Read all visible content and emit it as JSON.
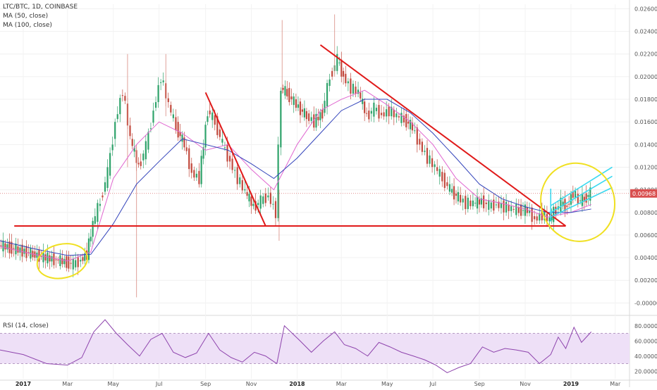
{
  "chart_data": {
    "type": "candlestick",
    "title": "LTC/BTC, 1D, COINBASE",
    "indicators": [
      "MA (50, close)",
      "MA (100, close)"
    ],
    "rsi_label": "RSI (14, close)",
    "last_price": "0.00968",
    "price_ticks": [
      "0.02600",
      "0.02400",
      "0.02200",
      "0.02000",
      "0.01800",
      "0.01600",
      "0.01400",
      "0.01200",
      "0.01000",
      "0.00800",
      "0.00600",
      "0.00400",
      "0.00200",
      "-0.00000"
    ],
    "rsi_ticks": [
      "80.0000",
      "60.0000",
      "40.0000",
      "20.0000"
    ],
    "x_ticks": [
      {
        "label": "2017",
        "bold": true
      },
      {
        "label": "Mar",
        "bold": false
      },
      {
        "label": "May",
        "bold": false
      },
      {
        "label": "Jul",
        "bold": false
      },
      {
        "label": "Sep",
        "bold": false
      },
      {
        "label": "Nov",
        "bold": false
      },
      {
        "label": "2018",
        "bold": true
      },
      {
        "label": "Mar",
        "bold": false
      },
      {
        "label": "May",
        "bold": false
      },
      {
        "label": "Jul",
        "bold": false
      },
      {
        "label": "Sep",
        "bold": false
      },
      {
        "label": "Nov",
        "bold": false
      },
      {
        "label": "2019",
        "bold": true
      },
      {
        "label": "Mar",
        "bold": false
      }
    ],
    "price_series": [
      [
        "2016-12-01",
        0.0051
      ],
      [
        "2016-12-15",
        0.0049
      ],
      [
        "2017-01-01",
        0.0046
      ],
      [
        "2017-01-15",
        0.0043
      ],
      [
        "2017-02-01",
        0.004
      ],
      [
        "2017-02-15",
        0.0038
      ],
      [
        "2017-03-01",
        0.0036
      ],
      [
        "2017-03-10",
        0.0034
      ],
      [
        "2017-03-20",
        0.0038
      ],
      [
        "2017-03-28",
        0.0043
      ],
      [
        "2017-04-05",
        0.007
      ],
      [
        "2017-04-15",
        0.009
      ],
      [
        "2017-04-25",
        0.0115
      ],
      [
        "2017-05-05",
        0.016
      ],
      [
        "2017-05-15",
        0.0188
      ],
      [
        "2017-05-25",
        0.0145
      ],
      [
        "2017-06-05",
        0.012
      ],
      [
        "2017-06-15",
        0.0138
      ],
      [
        "2017-06-25",
        0.017
      ],
      [
        "2017-07-05",
        0.02
      ],
      [
        "2017-07-15",
        0.0175
      ],
      [
        "2017-07-25",
        0.0155
      ],
      [
        "2017-08-05",
        0.014
      ],
      [
        "2017-08-15",
        0.0115
      ],
      [
        "2017-08-25",
        0.011
      ],
      [
        "2017-09-05",
        0.017
      ],
      [
        "2017-09-15",
        0.016
      ],
      [
        "2017-09-25",
        0.014
      ],
      [
        "2017-10-05",
        0.0125
      ],
      [
        "2017-10-15",
        0.011
      ],
      [
        "2017-10-25",
        0.0098
      ],
      [
        "2017-11-05",
        0.0085
      ],
      [
        "2017-11-15",
        0.009
      ],
      [
        "2017-11-25",
        0.0095
      ],
      [
        "2017-12-05",
        0.008
      ],
      [
        "2017-12-12",
        0.019
      ],
      [
        "2017-12-20",
        0.0185
      ],
      [
        "2018-01-01",
        0.0175
      ],
      [
        "2018-01-15",
        0.0165
      ],
      [
        "2018-01-25",
        0.016
      ],
      [
        "2018-02-05",
        0.0168
      ],
      [
        "2018-02-15",
        0.02
      ],
      [
        "2018-02-25",
        0.0215
      ],
      [
        "2018-03-05",
        0.02
      ],
      [
        "2018-03-15",
        0.019
      ],
      [
        "2018-03-25",
        0.0186
      ],
      [
        "2018-04-05",
        0.0165
      ],
      [
        "2018-04-15",
        0.0172
      ],
      [
        "2018-04-25",
        0.0166
      ],
      [
        "2018-05-05",
        0.017
      ],
      [
        "2018-05-15",
        0.0165
      ],
      [
        "2018-05-25",
        0.0162
      ],
      [
        "2018-06-05",
        0.0155
      ],
      [
        "2018-06-15",
        0.014
      ],
      [
        "2018-06-25",
        0.0128
      ],
      [
        "2018-07-05",
        0.012
      ],
      [
        "2018-07-15",
        0.011
      ],
      [
        "2018-07-25",
        0.01
      ],
      [
        "2018-08-05",
        0.0093
      ],
      [
        "2018-08-15",
        0.0088
      ],
      [
        "2018-08-25",
        0.0088
      ],
      [
        "2018-09-05",
        0.009
      ],
      [
        "2018-09-15",
        0.0086
      ],
      [
        "2018-09-25",
        0.0087
      ],
      [
        "2018-10-05",
        0.0085
      ],
      [
        "2018-10-15",
        0.0083
      ],
      [
        "2018-10-25",
        0.0082
      ],
      [
        "2018-11-05",
        0.0082
      ],
      [
        "2018-11-15",
        0.0074
      ],
      [
        "2018-11-25",
        0.0078
      ],
      [
        "2018-12-05",
        0.0073
      ],
      [
        "2018-12-10",
        0.008
      ],
      [
        "2018-12-20",
        0.0088
      ],
      [
        "2018-12-28",
        0.0085
      ],
      [
        "2019-01-05",
        0.0098
      ],
      [
        "2019-01-12",
        0.009
      ],
      [
        "2019-01-20",
        0.0092
      ],
      [
        "2019-01-28",
        0.0097
      ]
    ],
    "ma50": [
      [
        "2016-12-01",
        0.005
      ],
      [
        "2017-01-15",
        0.0043
      ],
      [
        "2017-03-01",
        0.0037
      ],
      [
        "2017-04-01",
        0.0045
      ],
      [
        "2017-05-01",
        0.011
      ],
      [
        "2017-06-01",
        0.014
      ],
      [
        "2017-07-01",
        0.016
      ],
      [
        "2017-08-01",
        0.015
      ],
      [
        "2017-09-01",
        0.0135
      ],
      [
        "2017-10-01",
        0.014
      ],
      [
        "2017-11-01",
        0.0118
      ],
      [
        "2017-12-01",
        0.01
      ],
      [
        "2018-01-01",
        0.014
      ],
      [
        "2018-02-01",
        0.017
      ],
      [
        "2018-03-01",
        0.018
      ],
      [
        "2018-04-01",
        0.0188
      ],
      [
        "2018-05-01",
        0.0175
      ],
      [
        "2018-06-01",
        0.016
      ],
      [
        "2018-07-01",
        0.014
      ],
      [
        "2018-08-01",
        0.011
      ],
      [
        "2018-09-01",
        0.0092
      ],
      [
        "2018-10-01",
        0.0088
      ],
      [
        "2018-11-01",
        0.0083
      ],
      [
        "2018-12-01",
        0.0076
      ],
      [
        "2019-01-01",
        0.008
      ],
      [
        "2019-01-28",
        0.0087
      ]
    ],
    "ma100": [
      [
        "2016-12-01",
        0.0055
      ],
      [
        "2017-01-15",
        0.0048
      ],
      [
        "2017-03-01",
        0.0042
      ],
      [
        "2017-04-01",
        0.0043
      ],
      [
        "2017-05-01",
        0.007
      ],
      [
        "2017-06-01",
        0.0105
      ],
      [
        "2017-07-01",
        0.0125
      ],
      [
        "2017-08-01",
        0.0145
      ],
      [
        "2017-09-01",
        0.014
      ],
      [
        "2017-10-01",
        0.0135
      ],
      [
        "2017-11-01",
        0.0123
      ],
      [
        "2017-12-01",
        0.011
      ],
      [
        "2018-01-01",
        0.0128
      ],
      [
        "2018-02-01",
        0.015
      ],
      [
        "2018-03-01",
        0.017
      ],
      [
        "2018-04-01",
        0.018
      ],
      [
        "2018-05-01",
        0.018
      ],
      [
        "2018-06-01",
        0.0168
      ],
      [
        "2018-07-01",
        0.015
      ],
      [
        "2018-08-01",
        0.0128
      ],
      [
        "2018-09-01",
        0.0105
      ],
      [
        "2018-10-01",
        0.0092
      ],
      [
        "2018-11-01",
        0.0085
      ],
      [
        "2018-12-01",
        0.008
      ],
      [
        "2019-01-01",
        0.008
      ],
      [
        "2019-01-28",
        0.0083
      ]
    ],
    "rsi_series": [
      [
        "2016-12-01",
        48
      ],
      [
        "2017-01-01",
        42
      ],
      [
        "2017-02-01",
        30
      ],
      [
        "2017-03-01",
        28
      ],
      [
        "2017-03-20",
        38
      ],
      [
        "2017-04-05",
        72
      ],
      [
        "2017-04-20",
        88
      ],
      [
        "2017-05-05",
        70
      ],
      [
        "2017-05-20",
        55
      ],
      [
        "2017-06-05",
        40
      ],
      [
        "2017-06-20",
        62
      ],
      [
        "2017-07-05",
        70
      ],
      [
        "2017-07-20",
        45
      ],
      [
        "2017-08-05",
        38
      ],
      [
        "2017-08-20",
        44
      ],
      [
        "2017-09-05",
        70
      ],
      [
        "2017-09-20",
        48
      ],
      [
        "2017-10-05",
        38
      ],
      [
        "2017-10-20",
        32
      ],
      [
        "2017-11-05",
        45
      ],
      [
        "2017-11-20",
        40
      ],
      [
        "2017-12-05",
        30
      ],
      [
        "2017-12-15",
        80
      ],
      [
        "2018-01-05",
        60
      ],
      [
        "2018-01-20",
        45
      ],
      [
        "2018-02-05",
        60
      ],
      [
        "2018-02-20",
        72
      ],
      [
        "2018-03-05",
        55
      ],
      [
        "2018-03-20",
        50
      ],
      [
        "2018-04-05",
        40
      ],
      [
        "2018-04-20",
        58
      ],
      [
        "2018-05-05",
        52
      ],
      [
        "2018-05-20",
        45
      ],
      [
        "2018-06-05",
        40
      ],
      [
        "2018-06-20",
        35
      ],
      [
        "2018-07-05",
        28
      ],
      [
        "2018-07-20",
        18
      ],
      [
        "2018-08-05",
        25
      ],
      [
        "2018-08-20",
        30
      ],
      [
        "2018-09-05",
        52
      ],
      [
        "2018-09-20",
        45
      ],
      [
        "2018-10-05",
        50
      ],
      [
        "2018-10-20",
        48
      ],
      [
        "2018-11-05",
        45
      ],
      [
        "2018-11-20",
        30
      ],
      [
        "2018-12-05",
        42
      ],
      [
        "2018-12-15",
        65
      ],
      [
        "2018-12-25",
        50
      ],
      [
        "2019-01-05",
        78
      ],
      [
        "2019-01-15",
        58
      ],
      [
        "2019-01-28",
        72
      ]
    ]
  }
}
